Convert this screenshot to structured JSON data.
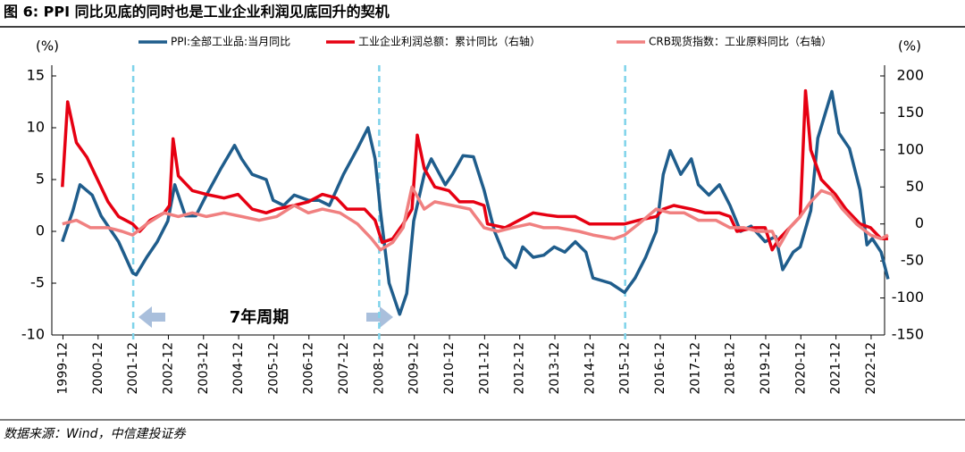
{
  "chart_data": {
    "type": "line",
    "title": "图 6: PPI 同比见底的同时也是工业企业利润见底回升的契机",
    "y_label": "(%)",
    "y2_label": "(%)",
    "annotation": "7年周期",
    "source": "数据来源：Wind，中信建投证券",
    "xlim": [
      1999.6,
      2023.3
    ],
    "ylim": [
      -10,
      15
    ],
    "y2lim": [
      -150,
      200
    ],
    "yticks": [
      -10,
      -5,
      0,
      5,
      10,
      15
    ],
    "y2ticks": [
      -150,
      -100,
      -50,
      0,
      50,
      100,
      150,
      200
    ],
    "xticks": [
      {
        "value": 1999.917,
        "label": "1999-12"
      },
      {
        "value": 2000.917,
        "label": "2000-12"
      },
      {
        "value": 2001.917,
        "label": "2001-12"
      },
      {
        "value": 2002.917,
        "label": "2002-12"
      },
      {
        "value": 2003.917,
        "label": "2003-12"
      },
      {
        "value": 2004.917,
        "label": "2004-12"
      },
      {
        "value": 2005.917,
        "label": "2005-12"
      },
      {
        "value": 2006.917,
        "label": "2006-12"
      },
      {
        "value": 2007.917,
        "label": "2007-12"
      },
      {
        "value": 2008.917,
        "label": "2008-12"
      },
      {
        "value": 2009.917,
        "label": "2009-12"
      },
      {
        "value": 2010.917,
        "label": "2010-12"
      },
      {
        "value": 2011.917,
        "label": "2011-12"
      },
      {
        "value": 2012.917,
        "label": "2012-12"
      },
      {
        "value": 2013.917,
        "label": "2013-12"
      },
      {
        "value": 2014.917,
        "label": "2014-12"
      },
      {
        "value": 2015.917,
        "label": "2015-12"
      },
      {
        "value": 2016.917,
        "label": "2016-12"
      },
      {
        "value": 2017.917,
        "label": "2017-12"
      },
      {
        "value": 2018.917,
        "label": "2018-12"
      },
      {
        "value": 2019.917,
        "label": "2019-12"
      },
      {
        "value": 2020.917,
        "label": "2020-12"
      },
      {
        "value": 2021.917,
        "label": "2021-12"
      },
      {
        "value": 2022.917,
        "label": "2022-12"
      }
    ],
    "reference_lines": [
      2001.917,
      2008.917,
      2015.917
    ],
    "series": [
      {
        "name": "PPI:全部工业品:当月同比",
        "color": "#1f5d8c",
        "axis": "y",
        "x": [
          1999.9,
          2000.2,
          2000.4,
          2000.75,
          2001.0,
          2001.5,
          2001.9,
          2002.0,
          2002.3,
          2002.6,
          2002.9,
          2003.1,
          2003.4,
          2003.7,
          2004.0,
          2004.4,
          2004.8,
          2005.0,
          2005.3,
          2005.7,
          2005.9,
          2006.2,
          2006.5,
          2006.9,
          2007.2,
          2007.5,
          2007.9,
          2008.3,
          2008.6,
          2008.8,
          2008.95,
          2009.2,
          2009.5,
          2009.7,
          2009.9,
          2010.2,
          2010.4,
          2010.8,
          2011.0,
          2011.3,
          2011.6,
          2011.9,
          2012.2,
          2012.5,
          2012.8,
          2013.0,
          2013.3,
          2013.6,
          2013.9,
          2014.2,
          2014.5,
          2014.8,
          2015.0,
          2015.5,
          2015.9,
          2016.2,
          2016.5,
          2016.8,
          2017.0,
          2017.2,
          2017.5,
          2017.8,
          2018.0,
          2018.3,
          2018.6,
          2018.9,
          2019.2,
          2019.5,
          2019.9,
          2020.2,
          2020.4,
          2020.7,
          2020.9,
          2021.2,
          2021.4,
          2021.8,
          2022.0,
          2022.3,
          2022.6,
          2022.8,
          2022.95,
          2023.2,
          2023.4
        ],
        "values": [
          -1,
          2,
          4.5,
          3.5,
          1.5,
          -1,
          -4,
          -4.2,
          -2.5,
          -1,
          1,
          4.5,
          1.5,
          1.5,
          3.5,
          6,
          8.3,
          7,
          5.5,
          5,
          3,
          2.5,
          3.5,
          3,
          3,
          2.5,
          5.5,
          8,
          10,
          7,
          2,
          -5,
          -8,
          -6,
          1,
          5.5,
          7,
          4.5,
          5.5,
          7.3,
          7.2,
          4,
          0,
          -2.5,
          -3.5,
          -1.5,
          -2.5,
          -2.3,
          -1.5,
          -2,
          -1,
          -2,
          -4.5,
          -5,
          -5.9,
          -4.5,
          -2.5,
          0,
          5.5,
          7.8,
          5.5,
          7,
          4.5,
          3.5,
          4.5,
          2.5,
          0,
          0.5,
          -1,
          -0.5,
          -3.7,
          -2,
          -1.5,
          2,
          9,
          13.5,
          9.5,
          8,
          4,
          -1.3,
          -0.7,
          -2,
          -4.6
        ]
      },
      {
        "name": "工业企业利润总额：累计同比（右轴）",
        "color": "#e60012",
        "axis": "y2",
        "x": [
          1999.9,
          2000.05,
          2000.3,
          2000.6,
          2000.9,
          2001.2,
          2001.5,
          2001.9,
          2002.1,
          2002.4,
          2002.8,
          2002.95,
          2003.05,
          2003.2,
          2003.6,
          2004.0,
          2004.5,
          2004.9,
          2005.3,
          2005.7,
          2006.0,
          2006.5,
          2006.9,
          2007.3,
          2007.7,
          2008.0,
          2008.5,
          2008.8,
          2009.0,
          2009.3,
          2009.6,
          2009.85,
          2010.0,
          2010.2,
          2010.5,
          2010.9,
          2011.2,
          2011.6,
          2011.9,
          2012.0,
          2012.5,
          2012.9,
          2013.3,
          2013.7,
          2014.0,
          2014.5,
          2014.9,
          2015.5,
          2015.9,
          2016.3,
          2016.8,
          2017.0,
          2017.3,
          2017.8,
          2018.2,
          2018.6,
          2018.9,
          2019.1,
          2019.6,
          2019.9,
          2020.1,
          2020.3,
          2020.7,
          2020.9,
          2021.05,
          2021.2,
          2021.5,
          2021.9,
          2022.2,
          2022.6,
          2022.9,
          2023.2,
          2023.4
        ],
        "values": [
          50,
          165,
          110,
          90,
          60,
          30,
          10,
          0,
          -10,
          5,
          15,
          25,
          115,
          65,
          45,
          40,
          35,
          40,
          20,
          15,
          20,
          25,
          30,
          40,
          35,
          20,
          20,
          5,
          -25,
          -20,
          0,
          20,
          120,
          75,
          50,
          45,
          30,
          30,
          25,
          0,
          -5,
          5,
          15,
          12,
          10,
          10,
          0,
          0,
          0,
          5,
          10,
          20,
          25,
          20,
          15,
          15,
          10,
          -10,
          -5,
          -5,
          -35,
          -20,
          0,
          10,
          180,
          100,
          60,
          40,
          20,
          0,
          -5,
          -20,
          -20
        ]
      },
      {
        "name": "CRB现货指数：工业原料同比（右轴）",
        "color": "#f08080",
        "axis": "y2",
        "x": [
          1999.9,
          2000.3,
          2000.7,
          2001.2,
          2001.6,
          2001.9,
          2002.3,
          2002.8,
          2003.2,
          2003.6,
          2004.0,
          2004.5,
          2005.0,
          2005.5,
          2006.0,
          2006.5,
          2006.9,
          2007.3,
          2007.8,
          2008.3,
          2008.7,
          2008.95,
          2009.3,
          2009.6,
          2009.85,
          2010.2,
          2010.5,
          2011.0,
          2011.5,
          2011.9,
          2012.3,
          2012.7,
          2013.2,
          2013.6,
          2014.0,
          2014.6,
          2015.0,
          2015.6,
          2015.9,
          2016.3,
          2016.8,
          2017.2,
          2017.6,
          2018.0,
          2018.5,
          2018.9,
          2019.3,
          2019.7,
          2020.1,
          2020.3,
          2020.6,
          2020.9,
          2021.2,
          2021.5,
          2021.8,
          2022.1,
          2022.5,
          2022.9,
          2023.2,
          2023.4
        ],
        "values": [
          0,
          5,
          -5,
          -5,
          -10,
          -15,
          0,
          15,
          10,
          15,
          10,
          15,
          10,
          5,
          10,
          25,
          15,
          20,
          15,
          0,
          -20,
          -35,
          -25,
          -5,
          50,
          20,
          30,
          25,
          20,
          -5,
          -10,
          -5,
          0,
          -5,
          -5,
          -10,
          -15,
          -20,
          -15,
          0,
          20,
          15,
          15,
          5,
          5,
          -5,
          -5,
          -10,
          -10,
          -30,
          -5,
          10,
          30,
          45,
          40,
          20,
          0,
          -15,
          -20,
          -15
        ]
      }
    ]
  }
}
